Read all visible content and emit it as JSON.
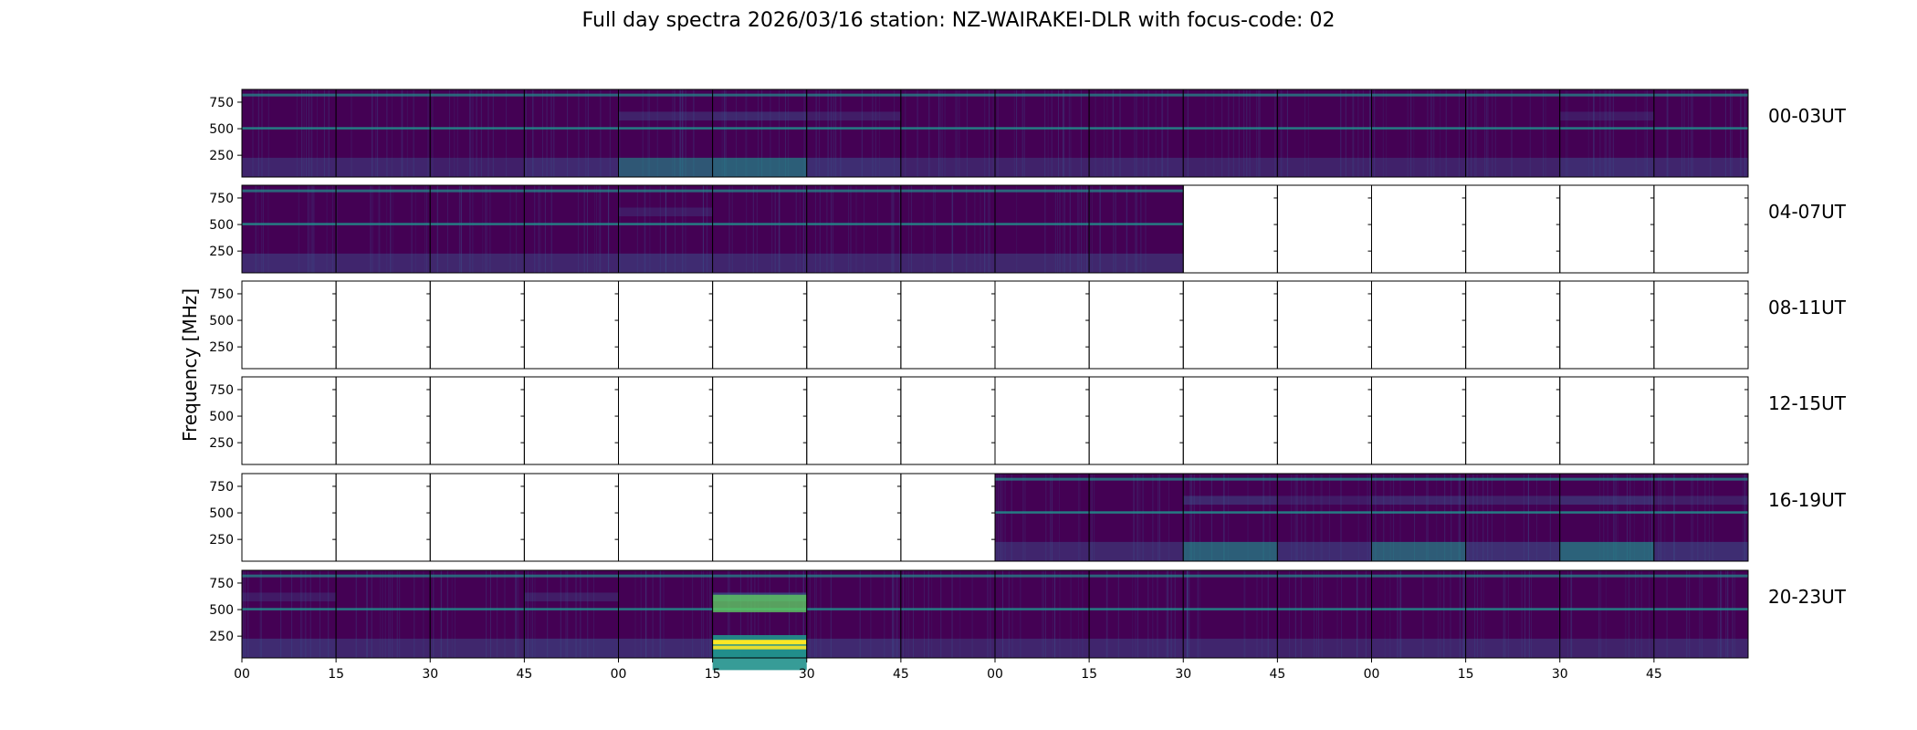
{
  "chart_data": {
    "type": "heatmap",
    "title": "Full day spectra 2026/03/16 station: NZ-WAIRAKEI-DLR with focus-code: 02",
    "xlabel": "",
    "ylabel": "Frequency [MHz]",
    "ylim": [
      45,
      870
    ],
    "y_ticks": [
      "750",
      "500",
      "250"
    ],
    "x_tick_labels": [
      "00",
      "15",
      "30",
      "45",
      "00",
      "15",
      "30",
      "45",
      "00",
      "15",
      "30",
      "45",
      "00",
      "15",
      "30",
      "45"
    ],
    "colormap": [
      "#440154",
      "#3b528b",
      "#21918c",
      "#5ec962",
      "#fde725"
    ],
    "rows": [
      {
        "label": "00-03UT",
        "panels": [
          1,
          1,
          1,
          1,
          1,
          1,
          1,
          1,
          1,
          1,
          1,
          1,
          1,
          1,
          1,
          1
        ],
        "activity": [
          0.3,
          0.3,
          0.15,
          0.4,
          0.6,
          0.7,
          0.5,
          0.25,
          0.25,
          0.3,
          0.25,
          0.25,
          0.2,
          0.25,
          0.45,
          0.3
        ]
      },
      {
        "label": "04-07UT",
        "panels": [
          1,
          1,
          1,
          1,
          1,
          1,
          1,
          1,
          1,
          1,
          0,
          0,
          0,
          0,
          0,
          0
        ],
        "activity": [
          0.4,
          0.3,
          0.35,
          0.3,
          0.45,
          0.3,
          0.3,
          0.3,
          0.35,
          0.35,
          0,
          0,
          0,
          0,
          0,
          0
        ]
      },
      {
        "label": "08-11UT",
        "panels": [
          0,
          0,
          0,
          0,
          0,
          0,
          0,
          0,
          0,
          0,
          0,
          0,
          0,
          0,
          0,
          0
        ],
        "activity": [
          0,
          0,
          0,
          0,
          0,
          0,
          0,
          0,
          0,
          0,
          0,
          0,
          0,
          0,
          0,
          0
        ]
      },
      {
        "label": "12-15UT",
        "panels": [
          0,
          0,
          0,
          0,
          0,
          0,
          0,
          0,
          0,
          0,
          0,
          0,
          0,
          0,
          0,
          0
        ],
        "activity": [
          0,
          0,
          0,
          0,
          0,
          0,
          0,
          0,
          0,
          0,
          0,
          0,
          0,
          0,
          0,
          0
        ]
      },
      {
        "label": "16-19UT",
        "panels": [
          0,
          0,
          0,
          0,
          0,
          0,
          0,
          0,
          1,
          1,
          1,
          1,
          1,
          1,
          1,
          1
        ],
        "activity": [
          0,
          0,
          0,
          0,
          0,
          0,
          0,
          0,
          0.3,
          0.35,
          0.7,
          0.45,
          0.65,
          0.55,
          0.75,
          0.5
        ]
      },
      {
        "label": "20-23UT",
        "panels": [
          1,
          1,
          1,
          1,
          1,
          1,
          1,
          1,
          1,
          1,
          1,
          1,
          1,
          1,
          1,
          1
        ],
        "activity": [
          0.45,
          0.3,
          0.35,
          0.5,
          0.4,
          1.0,
          0.4,
          0.25,
          0.3,
          0.3,
          0.3,
          0.25,
          0.3,
          0.3,
          0.25,
          0.3
        ]
      }
    ]
  }
}
